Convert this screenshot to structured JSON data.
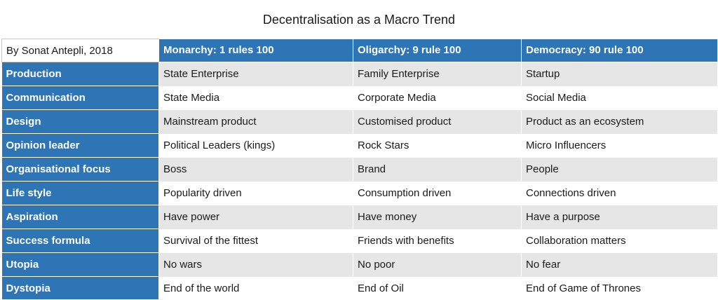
{
  "title": "Decentralisation as a Macro Trend",
  "table": {
    "corner": "By Sonat Antepli, 2018",
    "headers": [
      "Monarchy: 1 rules 100",
      "Oligarchy: 9 rule 100",
      "Democracy: 90 rule 100"
    ],
    "rows": [
      {
        "label": "Production",
        "cells": [
          "State Enterprise",
          "Family Enterprise",
          "Startup"
        ]
      },
      {
        "label": "Communication",
        "cells": [
          "State Media",
          "Corporate Media",
          "Social Media"
        ]
      },
      {
        "label": "Design",
        "cells": [
          "Mainstream product",
          "Customised product",
          "Product as an ecosystem"
        ]
      },
      {
        "label": "Opinion leader",
        "cells": [
          "Political Leaders (kings)",
          "Rock Stars",
          "Micro Influencers"
        ]
      },
      {
        "label": "Organisational focus",
        "cells": [
          "Boss",
          "Brand",
          "People"
        ]
      },
      {
        "label": "Life style",
        "cells": [
          "Popularity driven",
          "Consumption driven",
          "Connections driven"
        ]
      },
      {
        "label": "Aspiration",
        "cells": [
          "Have power",
          "Have money",
          "Have a purpose"
        ]
      },
      {
        "label": "Success formula",
        "cells": [
          "Survival of the fittest",
          "Friends with benefits",
          "Collaboration matters"
        ]
      },
      {
        "label": "Utopia",
        "cells": [
          "No wars",
          "No poor",
          "No fear"
        ]
      },
      {
        "label": "Dystopia",
        "cells": [
          "End of the world",
          "End of Oil",
          "End of Game of Thrones"
        ]
      }
    ]
  },
  "colors": {
    "header_blue": "#2e75b6",
    "stripe_gray": "#e6e6e6"
  }
}
